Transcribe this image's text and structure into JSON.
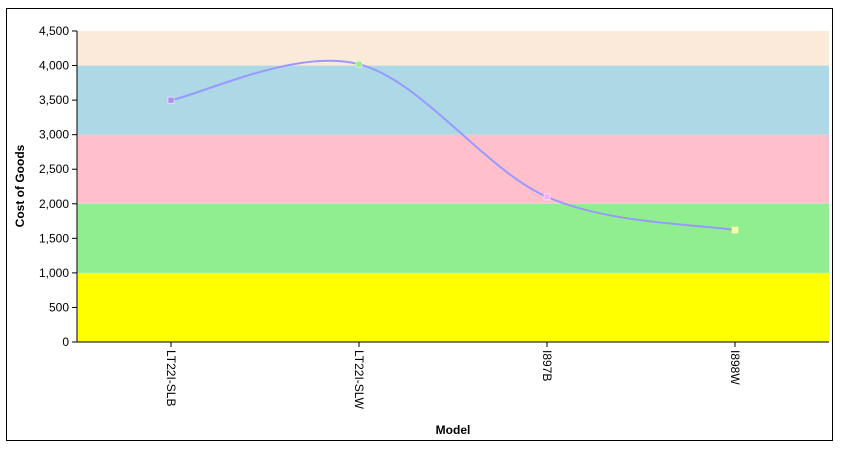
{
  "chart_data": {
    "type": "line",
    "title": "",
    "xlabel": "Model",
    "ylabel": "Cost of Goods",
    "categories": [
      "LT22I-SLB",
      "LT22I-SLW",
      "I897B",
      "I898W"
    ],
    "series": [
      {
        "values": [
          3500,
          4020,
          2100,
          1620
        ],
        "color": "#9999ff",
        "marker_colors": [
          "#b08cf0",
          "#99ee88",
          "#f8aaff",
          "#ffff88"
        ]
      }
    ],
    "ylim": [
      0,
      4500
    ],
    "yticks": [
      0,
      500,
      1000,
      1500,
      2000,
      2500,
      3000,
      3500,
      4000,
      4500
    ],
    "ytick_labels": [
      "0",
      "500",
      "1,000",
      "1,500",
      "2,000",
      "2,500",
      "3,000",
      "3,500",
      "4,000",
      "4,500"
    ],
    "bands": [
      {
        "from": 0,
        "to": 1000,
        "color": "#ffff00"
      },
      {
        "from": 1000,
        "to": 2000,
        "color": "#90ee90"
      },
      {
        "from": 2000,
        "to": 3000,
        "color": "#ffc0cb"
      },
      {
        "from": 3000,
        "to": 4000,
        "color": "#add8e6"
      },
      {
        "from": 4000,
        "to": 4500,
        "color": "#fbe9d9"
      }
    ],
    "grid": false,
    "legend": "none"
  }
}
